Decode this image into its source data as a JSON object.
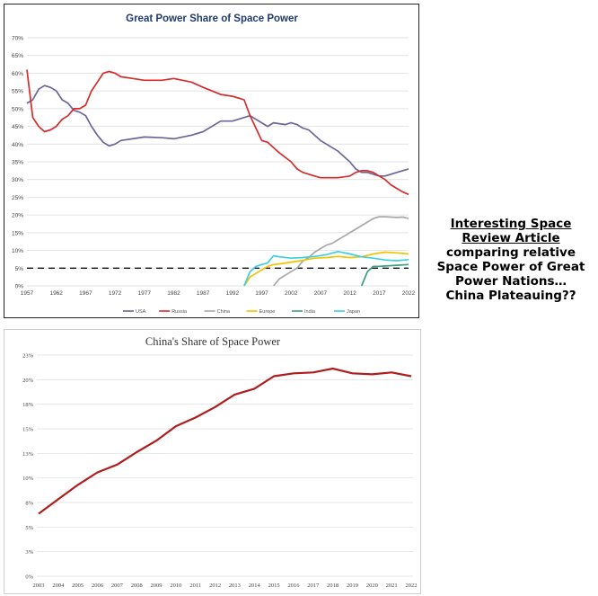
{
  "caption": {
    "line1": "Interesting Space",
    "line2": "Review Article",
    "line3": "comparing relative",
    "line4": "Space Power of Great",
    "line5": "Power Nations…",
    "line6": "China Plateauing??"
  },
  "chart_data": [
    {
      "type": "line",
      "title": "Great Power Share of Space Power",
      "xlabel": "",
      "ylabel": "",
      "xlim": [
        1957,
        2022
      ],
      "ylim": [
        0,
        70
      ],
      "yticks": [
        "0%",
        "5%",
        "10%",
        "15%",
        "20%",
        "25%",
        "30%",
        "35%",
        "40%",
        "45%",
        "50%",
        "55%",
        "60%",
        "65%",
        "70%"
      ],
      "xticks": [
        "1957",
        "1962",
        "1967",
        "1972",
        "1977",
        "1982",
        "1987",
        "1992",
        "1997",
        "2002",
        "2007",
        "2012",
        "2017",
        "2022"
      ],
      "grid": true,
      "legend": "bottom",
      "reference_line": 5,
      "series": [
        {
          "name": "USA",
          "color": "#6b6699",
          "x": [
            1957,
            1958,
            1959,
            1960,
            1961,
            1962,
            1963,
            1964,
            1965,
            1966,
            1967,
            1968,
            1969,
            1970,
            1971,
            1972,
            1973,
            1975,
            1977,
            1980,
            1982,
            1985,
            1987,
            1990,
            1992,
            1993,
            1995,
            1997,
            1998,
            1999,
            2001,
            2002,
            2003,
            2004,
            2005,
            2006,
            2007,
            2008,
            2010,
            2012,
            2013,
            2014,
            2015,
            2016,
            2017,
            2018,
            2019,
            2020,
            2022
          ],
          "y": [
            51.5,
            52.5,
            55.5,
            56.5,
            56,
            55,
            52.5,
            51.5,
            49.5,
            49,
            48,
            45,
            42.5,
            40.5,
            39.5,
            40,
            41,
            41.5,
            42,
            41.8,
            41.5,
            42.5,
            43.5,
            46.5,
            46.5,
            47,
            48,
            46,
            45,
            46,
            45.5,
            46,
            45.5,
            44.5,
            44,
            42.5,
            41,
            40,
            38,
            35,
            33,
            32,
            32,
            31.5,
            31,
            31,
            31.5,
            32,
            33
          ]
        },
        {
          "name": "Russia",
          "color": "#d62b2b",
          "x": [
            1957,
            1958,
            1959,
            1960,
            1961,
            1962,
            1963,
            1964,
            1965,
            1966,
            1967,
            1968,
            1969,
            1970,
            1971,
            1972,
            1973,
            1975,
            1977,
            1980,
            1982,
            1985,
            1987,
            1990,
            1992,
            1993,
            1994,
            1995,
            1996,
            1997,
            1998,
            1999,
            2000,
            2002,
            2003,
            2004,
            2006,
            2007,
            2008,
            2010,
            2012,
            2013,
            2014,
            2015,
            2016,
            2017,
            2018,
            2019,
            2020,
            2021,
            2022
          ],
          "y": [
            61,
            47.5,
            45,
            43.5,
            44,
            45,
            47,
            48,
            50,
            50,
            51,
            55,
            57.5,
            60,
            60.5,
            60,
            59,
            58.5,
            58,
            58,
            58.5,
            57.5,
            56,
            54,
            53.5,
            53,
            52.5,
            48,
            44.5,
            41,
            40.5,
            39,
            37.5,
            35,
            33,
            32,
            31,
            30.5,
            30.5,
            30.5,
            31,
            32,
            32.5,
            32.5,
            32,
            31,
            30,
            28.5,
            27.5,
            26.5,
            25.8
          ]
        },
        {
          "name": "China",
          "color": "#a8a8a8",
          "x": [
            1999,
            2000,
            2001,
            2002,
            2003,
            2004,
            2005,
            2006,
            2007,
            2008,
            2009,
            2010,
            2011,
            2012,
            2013,
            2014,
            2015,
            2016,
            2017,
            2018,
            2019,
            2020,
            2021,
            2022
          ],
          "y": [
            0,
            2,
            3,
            4,
            5,
            7,
            8,
            9.5,
            10.5,
            11.5,
            12,
            13,
            14,
            15,
            16,
            17,
            18,
            19,
            19.5,
            19.5,
            19.4,
            19.3,
            19.4,
            19.0
          ]
        },
        {
          "name": "Europe",
          "color": "#f5c200",
          "x": [
            1994,
            1995,
            1996,
            1997,
            1998,
            1999,
            2000,
            2002,
            2004,
            2006,
            2008,
            2010,
            2012,
            2014,
            2016,
            2018,
            2020,
            2022
          ],
          "y": [
            0,
            2.5,
            3.5,
            4.5,
            5.5,
            6,
            6.2,
            6.7,
            7.2,
            7.8,
            8,
            8.3,
            8,
            8.2,
            9,
            9.5,
            9.3,
            9
          ]
        },
        {
          "name": "India",
          "color": "#3a9e83",
          "x": [
            2014,
            2015,
            2016,
            2017,
            2018,
            2020,
            2022
          ],
          "y": [
            0,
            4,
            5.5,
            5.5,
            5.6,
            5.8,
            6
          ]
        },
        {
          "name": "Japan",
          "color": "#3ccfe0",
          "x": [
            1994,
            1995,
            1996,
            1997,
            1998,
            1999,
            2000,
            2002,
            2004,
            2006,
            2008,
            2010,
            2012,
            2014,
            2016,
            2018,
            2020,
            2022
          ],
          "y": [
            0,
            4,
            5.5,
            6,
            6.5,
            8.5,
            8.2,
            7.8,
            8,
            8.3,
            8.8,
            9.7,
            9,
            8.2,
            7.8,
            7.3,
            7.1,
            7.4
          ]
        }
      ]
    },
    {
      "type": "line",
      "title": "China's Share of Space Power",
      "xlabel": "",
      "ylabel": "",
      "xlim": [
        2003,
        2022
      ],
      "ylim": [
        0,
        23
      ],
      "yticks": [
        "0%",
        "3%",
        "5%",
        "8%",
        "10%",
        "13%",
        "15%",
        "18%",
        "20%",
        "23%"
      ],
      "xticks": [
        "2003",
        "2004",
        "2005",
        "2006",
        "2007",
        "2008",
        "2009",
        "2010",
        "2011",
        "2012",
        "2013",
        "2014",
        "2015",
        "2016",
        "2017",
        "2018",
        "2019",
        "2020",
        "2021",
        "2022"
      ],
      "grid": true,
      "legend": "none",
      "series": [
        {
          "name": "",
          "color": "#b01c1c",
          "x": [
            2003,
            2004,
            2005,
            2006,
            2007,
            2008,
            2009,
            2010,
            2011,
            2012,
            2013,
            2014,
            2015,
            2016,
            2017,
            2018,
            2019,
            2020,
            2021,
            2022
          ],
          "y": [
            6.5,
            8,
            9.5,
            10.8,
            11.6,
            12.9,
            14.1,
            15.6,
            16.5,
            17.6,
            18.9,
            19.5,
            20.8,
            21.1,
            21.2,
            21.6,
            21.1,
            21.0,
            21.2,
            20.8
          ]
        }
      ]
    }
  ]
}
